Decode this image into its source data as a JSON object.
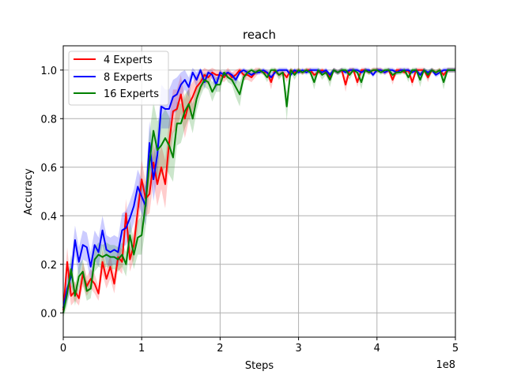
{
  "chart_data": {
    "type": "line",
    "title": "reach",
    "xlabel": "Steps",
    "ylabel": "Accuracy",
    "x_offset_label": "1e8",
    "xlim": [
      0,
      5
    ],
    "ylim": [
      -0.1,
      1.1
    ],
    "xticks": [
      "0",
      "1",
      "2",
      "3",
      "4",
      "5"
    ],
    "yticks": [
      "0.0",
      "0.2",
      "0.4",
      "0.6",
      "0.8",
      "1.0"
    ],
    "grid": true,
    "legend_position": "upper-left",
    "x": [
      0.0,
      0.05,
      0.1,
      0.15,
      0.2,
      0.25,
      0.3,
      0.35,
      0.4,
      0.45,
      0.5,
      0.55,
      0.6,
      0.65,
      0.7,
      0.75,
      0.8,
      0.85,
      0.9,
      0.95,
      1.0,
      1.05,
      1.1,
      1.15,
      1.2,
      1.25,
      1.3,
      1.35,
      1.4,
      1.45,
      1.5,
      1.55,
      1.6,
      1.65,
      1.7,
      1.75,
      1.8,
      1.85,
      1.9,
      1.95,
      2.0,
      2.05,
      2.1,
      2.15,
      2.2,
      2.25,
      2.3,
      2.35,
      2.4,
      2.45,
      2.5,
      2.55,
      2.6,
      2.65,
      2.7,
      2.75,
      2.8,
      2.85,
      2.9,
      2.95,
      3.0,
      3.05,
      3.1,
      3.15,
      3.2,
      3.25,
      3.3,
      3.35,
      3.4,
      3.45,
      3.5,
      3.55,
      3.6,
      3.65,
      3.7,
      3.75,
      3.8,
      3.85,
      3.9,
      3.95,
      4.0,
      4.05,
      4.1,
      4.15,
      4.2,
      4.25,
      4.3,
      4.35,
      4.4,
      4.45,
      4.5,
      4.55,
      4.6,
      4.65,
      4.7,
      4.75,
      4.8,
      4.85,
      4.9,
      4.95,
      5.0
    ],
    "series": [
      {
        "name": "4 Experts",
        "color": "#ff0000",
        "values": [
          0.01,
          0.21,
          0.07,
          0.09,
          0.06,
          0.16,
          0.11,
          0.14,
          0.12,
          0.08,
          0.21,
          0.14,
          0.19,
          0.12,
          0.23,
          0.21,
          0.41,
          0.22,
          0.28,
          0.42,
          0.55,
          0.47,
          0.49,
          0.62,
          0.53,
          0.6,
          0.53,
          0.7,
          0.83,
          0.84,
          0.9,
          0.8,
          0.86,
          0.89,
          0.93,
          0.95,
          0.98,
          0.97,
          0.99,
          0.98,
          0.98,
          0.97,
          0.99,
          0.97,
          0.98,
          1.0,
          0.98,
          0.98,
          0.97,
          0.99,
          1.0,
          0.99,
          0.99,
          0.95,
          1.0,
          0.98,
          0.99,
          0.97,
          1.0,
          0.99,
          1.0,
          0.99,
          1.0,
          1.0,
          0.98,
          0.99,
          1.0,
          0.99,
          0.97,
          1.0,
          0.99,
          1.0,
          0.94,
          1.0,
          1.0,
          0.95,
          1.0,
          1.0,
          0.99,
          1.0,
          1.0,
          1.0,
          0.99,
          1.0,
          0.96,
          1.0,
          1.0,
          0.99,
          1.0,
          0.95,
          1.0,
          1.0,
          1.0,
          0.97,
          1.0,
          0.99,
          1.0,
          0.98,
          1.0,
          1.0,
          1.0
        ],
        "spread": [
          0.03,
          0.06,
          0.04,
          0.04,
          0.03,
          0.05,
          0.04,
          0.04,
          0.04,
          0.03,
          0.05,
          0.04,
          0.05,
          0.04,
          0.05,
          0.05,
          0.06,
          0.05,
          0.06,
          0.07,
          0.08,
          0.07,
          0.08,
          0.08,
          0.09,
          0.09,
          0.1,
          0.09,
          0.09,
          0.08,
          0.08,
          0.08,
          0.07,
          0.06,
          0.05,
          0.04,
          0.03,
          0.03,
          0.02,
          0.02,
          0.02,
          0.02,
          0.02,
          0.02,
          0.02,
          0.01,
          0.02,
          0.02,
          0.02,
          0.02,
          0.01,
          0.01,
          0.01,
          0.03,
          0.01,
          0.01,
          0.01,
          0.02,
          0.01,
          0.01,
          0.01,
          0.01,
          0.01,
          0.01,
          0.01,
          0.01,
          0.01,
          0.01,
          0.02,
          0.01,
          0.01,
          0.01,
          0.03,
          0.01,
          0.01,
          0.02,
          0.01,
          0.01,
          0.01,
          0.01,
          0.01,
          0.01,
          0.01,
          0.01,
          0.02,
          0.01,
          0.01,
          0.01,
          0.01,
          0.02,
          0.01,
          0.01,
          0.01,
          0.02,
          0.01,
          0.01,
          0.01,
          0.01,
          0.01,
          0.01,
          0.01
        ]
      },
      {
        "name": "8 Experts",
        "color": "#0000ff",
        "values": [
          0.02,
          0.1,
          0.15,
          0.3,
          0.21,
          0.28,
          0.27,
          0.19,
          0.28,
          0.25,
          0.34,
          0.26,
          0.25,
          0.26,
          0.25,
          0.34,
          0.35,
          0.39,
          0.44,
          0.52,
          0.48,
          0.44,
          0.7,
          0.55,
          0.65,
          0.85,
          0.84,
          0.84,
          0.89,
          0.9,
          0.94,
          0.96,
          0.93,
          0.99,
          0.96,
          1.0,
          0.95,
          0.99,
          0.98,
          0.94,
          0.99,
          0.98,
          0.99,
          0.98,
          0.96,
          0.99,
          1.0,
          0.99,
          0.98,
          0.99,
          0.99,
          1.0,
          0.99,
          0.97,
          0.99,
          1.0,
          1.0,
          1.0,
          0.98,
          1.0,
          0.99,
          1.0,
          0.99,
          1.0,
          1.0,
          1.0,
          0.99,
          1.0,
          0.98,
          1.0,
          0.99,
          1.0,
          0.99,
          1.0,
          1.0,
          1.0,
          0.99,
          1.0,
          1.0,
          0.98,
          1.0,
          1.0,
          0.99,
          1.0,
          1.0,
          0.99,
          1.0,
          1.0,
          1.0,
          0.99,
          1.0,
          0.98,
          1.0,
          0.99,
          1.0,
          0.98,
          0.99,
          1.0,
          1.0,
          1.0,
          1.0
        ],
        "spread": [
          0.03,
          0.05,
          0.06,
          0.06,
          0.06,
          0.06,
          0.06,
          0.06,
          0.06,
          0.06,
          0.06,
          0.06,
          0.06,
          0.06,
          0.06,
          0.07,
          0.07,
          0.07,
          0.07,
          0.07,
          0.07,
          0.08,
          0.09,
          0.09,
          0.09,
          0.09,
          0.08,
          0.08,
          0.07,
          0.07,
          0.05,
          0.04,
          0.04,
          0.02,
          0.03,
          0.01,
          0.03,
          0.01,
          0.02,
          0.03,
          0.01,
          0.01,
          0.01,
          0.01,
          0.02,
          0.01,
          0.01,
          0.01,
          0.01,
          0.01,
          0.01,
          0.01,
          0.01,
          0.02,
          0.01,
          0.01,
          0.01,
          0.01,
          0.01,
          0.01,
          0.01,
          0.01,
          0.01,
          0.01,
          0.01,
          0.01,
          0.01,
          0.01,
          0.01,
          0.01,
          0.01,
          0.01,
          0.01,
          0.01,
          0.01,
          0.01,
          0.01,
          0.01,
          0.01,
          0.01,
          0.01,
          0.01,
          0.01,
          0.01,
          0.01,
          0.01,
          0.01,
          0.01,
          0.01,
          0.01,
          0.01,
          0.01,
          0.01,
          0.01,
          0.01,
          0.01,
          0.01,
          0.01,
          0.01,
          0.01,
          0.01
        ]
      },
      {
        "name": "16 Experts",
        "color": "#008000",
        "values": [
          0.0,
          0.08,
          0.18,
          0.07,
          0.15,
          0.17,
          0.09,
          0.1,
          0.22,
          0.24,
          0.23,
          0.24,
          0.23,
          0.23,
          0.22,
          0.24,
          0.2,
          0.32,
          0.24,
          0.31,
          0.32,
          0.45,
          0.62,
          0.75,
          0.67,
          0.69,
          0.72,
          0.69,
          0.64,
          0.78,
          0.78,
          0.83,
          0.86,
          0.8,
          0.88,
          0.93,
          0.96,
          0.95,
          0.91,
          0.94,
          0.94,
          0.99,
          0.97,
          0.96,
          0.93,
          0.9,
          0.97,
          0.99,
          1.0,
          0.99,
          1.0,
          0.99,
          0.97,
          1.0,
          1.0,
          0.98,
          0.99,
          0.85,
          1.0,
          0.98,
          1.0,
          0.99,
          1.0,
          0.99,
          0.95,
          1.0,
          0.98,
          0.99,
          0.96,
          1.0,
          0.99,
          1.0,
          1.0,
          0.98,
          1.0,
          0.99,
          0.95,
          1.0,
          0.99,
          1.0,
          1.0,
          0.99,
          1.0,
          1.0,
          0.98,
          0.99,
          0.99,
          1.0,
          0.97,
          1.0,
          1.0,
          0.96,
          1.0,
          0.98,
          1.0,
          0.99,
          1.0,
          0.95,
          1.0,
          1.0,
          1.0
        ],
        "spread": [
          0.02,
          0.05,
          0.06,
          0.04,
          0.05,
          0.05,
          0.04,
          0.04,
          0.05,
          0.05,
          0.05,
          0.05,
          0.05,
          0.05,
          0.05,
          0.05,
          0.05,
          0.06,
          0.06,
          0.07,
          0.08,
          0.1,
          0.12,
          0.12,
          0.12,
          0.12,
          0.12,
          0.12,
          0.1,
          0.09,
          0.08,
          0.07,
          0.06,
          0.06,
          0.05,
          0.04,
          0.03,
          0.03,
          0.04,
          0.03,
          0.03,
          0.01,
          0.02,
          0.02,
          0.04,
          0.05,
          0.02,
          0.01,
          0.01,
          0.01,
          0.01,
          0.01,
          0.02,
          0.01,
          0.01,
          0.02,
          0.01,
          0.06,
          0.01,
          0.02,
          0.01,
          0.01,
          0.01,
          0.01,
          0.03,
          0.01,
          0.02,
          0.01,
          0.03,
          0.01,
          0.01,
          0.01,
          0.01,
          0.02,
          0.01,
          0.01,
          0.03,
          0.01,
          0.01,
          0.01,
          0.01,
          0.01,
          0.01,
          0.01,
          0.02,
          0.01,
          0.01,
          0.01,
          0.02,
          0.01,
          0.01,
          0.03,
          0.01,
          0.02,
          0.01,
          0.01,
          0.01,
          0.03,
          0.01,
          0.01,
          0.01
        ]
      }
    ]
  }
}
